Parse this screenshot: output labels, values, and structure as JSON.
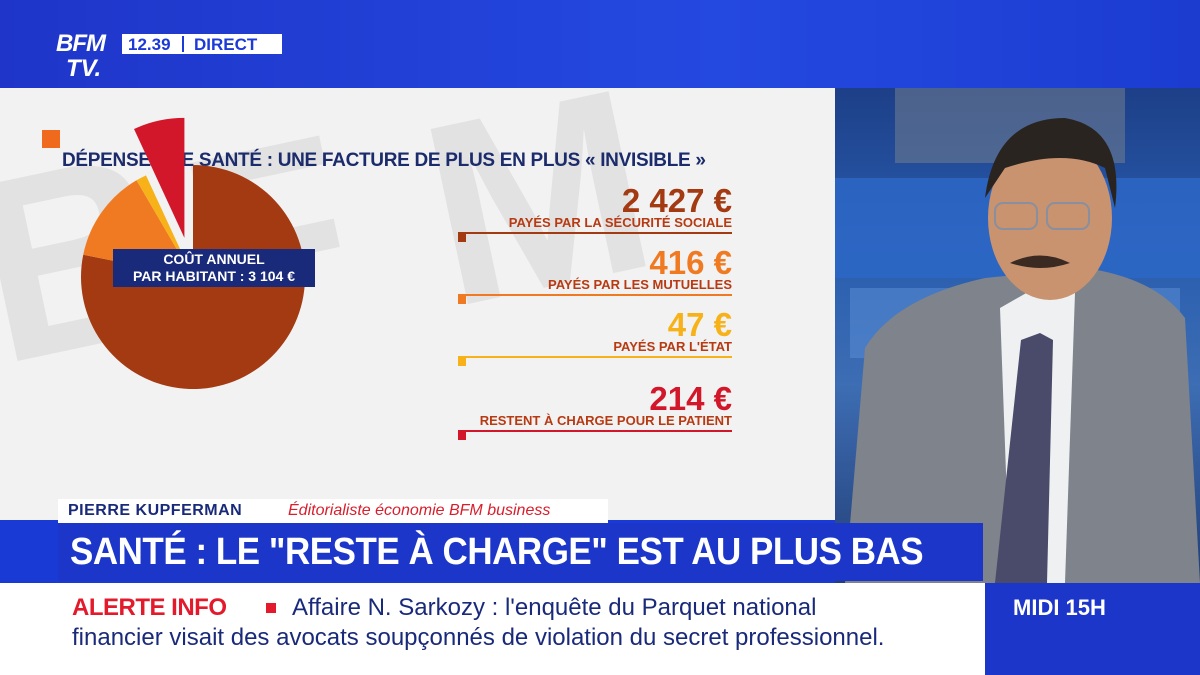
{
  "channel": {
    "logo_line1": "BFM",
    "logo_line2": "TV.",
    "time": "12.39",
    "live": "DIRECT"
  },
  "colors": {
    "securite_sociale": "#a33a12",
    "mutuelles": "#f07a22",
    "etat": "#f7b21a",
    "patient": "#d3172a",
    "header_blue": "#1c36c9",
    "title_navy": "#1b2b6b"
  },
  "chart_data": {
    "type": "pie",
    "title": "DÉPENSES DE SANTÉ : UNE FACTURE DE PLUS EN PLUS « INVISIBLE »",
    "center_label": [
      "COÛT ANNUEL",
      "PAR HABITANT : 3 104 €"
    ],
    "slices": [
      {
        "label": "PAYÉS PAR LA SÉCURITÉ SOCIALE",
        "value": 2427,
        "display": "2 427 €",
        "color": "#a33a12"
      },
      {
        "label": "PAYÉS PAR LES MUTUELLES",
        "value": 416,
        "display": "416 €",
        "color": "#f07a22"
      },
      {
        "label": "PAYÉS PAR L'ÉTAT",
        "value": 47,
        "display": "47 €",
        "color": "#f7b21a"
      },
      {
        "label": "RESTENT À CHARGE POUR LE PATIENT",
        "value": 214,
        "display": "214 €",
        "color": "#d3172a",
        "exploded": true
      }
    ]
  },
  "lower_third": {
    "name": "PIERRE KUPFERMAN",
    "role": "Éditorialiste économie BFM business",
    "headline": "SANTÉ : LE \"RESTE À CHARGE\" EST AU PLUS BAS"
  },
  "ticker": {
    "label": "ALERTE INFO",
    "line1": "Affaire N. Sarkozy : l'enquête du Parquet national",
    "line2": "financier visait des avocats soupçonnés de violation du secret professionnel."
  },
  "program": {
    "name": "MIDI 15H"
  }
}
